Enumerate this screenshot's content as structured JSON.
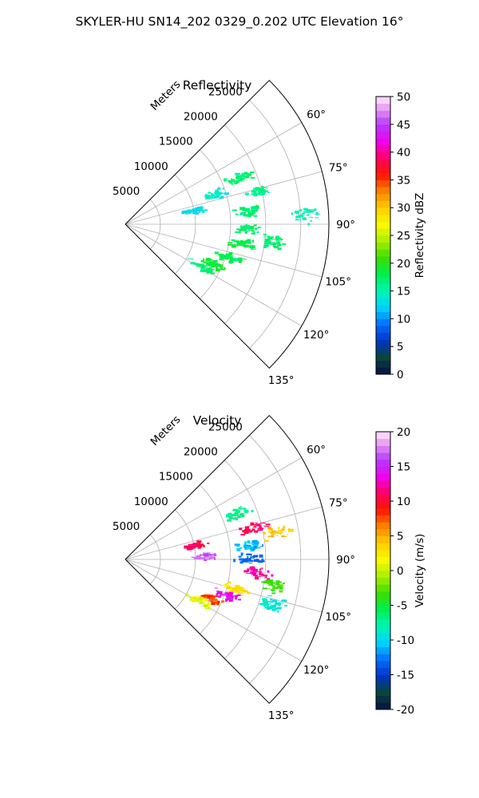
{
  "suptitle": "SKYLER-HU  SN14_202  0329_0.202 UTC Elevation 16°",
  "chart_data": [
    {
      "type": "polar-sector",
      "title": "Reflectivity",
      "radial_label": "Meters",
      "theta_min_deg": 45,
      "theta_max_deg": 135,
      "r_max": 29000,
      "radial_ticks": [
        "5000",
        "10000",
        "15000",
        "20000",
        "25000"
      ],
      "angle_ticks": [
        "60°",
        "75°",
        "90°",
        "105°",
        "120°",
        "135°"
      ],
      "grid": true,
      "colorbar": {
        "label": "Reflectivity dBZ",
        "vmin": 0,
        "vmax": 50,
        "ticks": [
          "0",
          "5",
          "10",
          "15",
          "20",
          "25",
          "30",
          "35",
          "40",
          "45",
          "50"
        ]
      },
      "echo_clusters": [
        {
          "az": 68,
          "r": 17500,
          "value": 17
        },
        {
          "az": 76,
          "r": 19500,
          "value": 16
        },
        {
          "az": 84,
          "r": 18000,
          "value": 17
        },
        {
          "az": 92,
          "r": 17500,
          "value": 17
        },
        {
          "az": 100,
          "r": 17000,
          "value": 18
        },
        {
          "az": 108,
          "r": 15500,
          "value": 18
        },
        {
          "az": 114,
          "r": 13500,
          "value": 19
        },
        {
          "az": 119,
          "r": 12500,
          "value": 17
        },
        {
          "az": 79,
          "r": 10000,
          "value": 13
        },
        {
          "az": 97,
          "r": 21000,
          "value": 17
        },
        {
          "az": 72,
          "r": 13500,
          "value": 14
        },
        {
          "az": 87,
          "r": 26000,
          "value": 15
        }
      ]
    },
    {
      "type": "polar-sector",
      "title": "Velocity",
      "radial_label": "Meters",
      "theta_min_deg": 45,
      "theta_max_deg": 135,
      "r_max": 29000,
      "radial_ticks": [
        "5000",
        "10000",
        "15000",
        "20000",
        "25000"
      ],
      "angle_ticks": [
        "60°",
        "75°",
        "90°",
        "105°",
        "120°",
        "135°"
      ],
      "grid": true,
      "colorbar": {
        "label": "Velocity (m/s)",
        "vmin": -20,
        "vmax": 20,
        "ticks": [
          "-20",
          "-15",
          "-10",
          "-5",
          "0",
          "5",
          "10",
          "15",
          "20"
        ]
      },
      "echo_clusters": [
        {
          "az": 68,
          "r": 17500,
          "value": -7
        },
        {
          "az": 76,
          "r": 19000,
          "value": 11
        },
        {
          "az": 80,
          "r": 22000,
          "value": 4
        },
        {
          "az": 84,
          "r": 18000,
          "value": -11
        },
        {
          "az": 90,
          "r": 17500,
          "value": -13
        },
        {
          "az": 96,
          "r": 19000,
          "value": 12
        },
        {
          "az": 100,
          "r": 21500,
          "value": -3
        },
        {
          "az": 105,
          "r": 16500,
          "value": 3
        },
        {
          "az": 110,
          "r": 15000,
          "value": 14
        },
        {
          "az": 115,
          "r": 13500,
          "value": 8
        },
        {
          "az": 119,
          "r": 12500,
          "value": 1
        },
        {
          "az": 79,
          "r": 10000,
          "value": 11
        },
        {
          "az": 107,
          "r": 22000,
          "value": -9
        },
        {
          "az": 88,
          "r": 11500,
          "value": 17
        }
      ]
    }
  ]
}
